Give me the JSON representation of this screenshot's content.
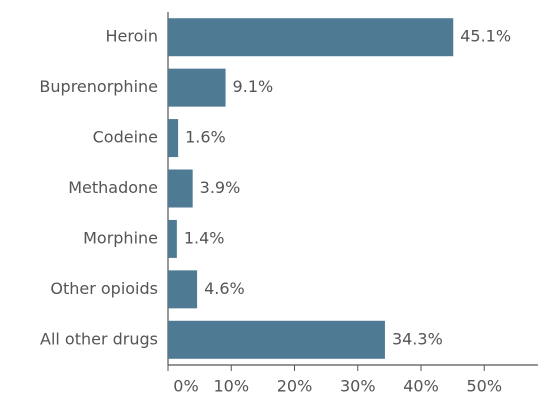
{
  "chart_data": {
    "type": "bar",
    "orientation": "horizontal",
    "categories": [
      "Heroin",
      "Buprenorphine",
      "Codeine",
      "Methadone",
      "Morphine",
      "Other opioids",
      "All other drugs"
    ],
    "values": [
      45.1,
      9.1,
      1.6,
      3.9,
      1.4,
      4.6,
      34.3
    ],
    "value_labels": [
      "45.1%",
      "9.1%",
      "1.6%",
      "3.9%",
      "1.4%",
      "4.6%",
      "34.3%"
    ],
    "color": "#4e7a93",
    "xlim": [
      0,
      58.5
    ],
    "xticks": [
      {
        "value": 0,
        "label": "0%"
      },
      {
        "value": 10,
        "label": "10%"
      },
      {
        "value": 20,
        "label": "20%"
      },
      {
        "value": 30,
        "label": "30%"
      },
      {
        "value": 40,
        "label": "40%"
      },
      {
        "value": 50,
        "label": "50%"
      }
    ]
  }
}
